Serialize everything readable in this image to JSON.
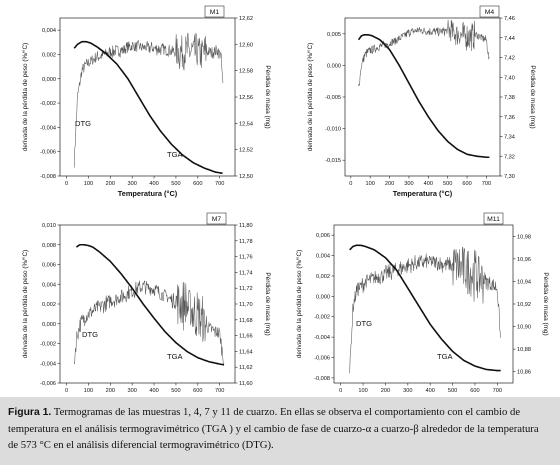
{
  "figure": {
    "caption_label": "Figura 1.",
    "caption_text": "Termogramas de las muestras 1, 4, 7 y 11 de cuarzo. En ellas se observa el comportamiento con el cambio de temperatura en el análisis termogravimétrico (TGA ) y el cambio de fase de cuarzo-α a cuarzo-β alrededor de la temperatura de 573 °C en el análisis diferencial termogravimétrico (DTG)."
  },
  "chart_data": [
    {
      "type": "line",
      "title": "M1",
      "xlabel": "Temperatura (°C)",
      "ylabel_left": "derivada de la pérdida de peso (%/°C)",
      "ylabel_right": "Pérdida de masa (mg)",
      "xlim": [
        -30,
        770
      ],
      "xticks": [
        0,
        100,
        200,
        300,
        400,
        500,
        600,
        700
      ],
      "ylim_left": [
        -0.008,
        0.005
      ],
      "yticks_left": [
        "-0,008",
        "-0,006",
        "-0,004",
        "-0,002",
        "0,000",
        "0,002",
        "0,004"
      ],
      "ylim_right": [
        12.5,
        12.62
      ],
      "yticks_right": [
        "12,50",
        "12,52",
        "12,54",
        "12,56",
        "12,58",
        "12,60",
        "12,62"
      ],
      "annotations": [
        "DTG",
        "TGA"
      ],
      "series": [
        {
          "name": "DTG",
          "axis": "left",
          "x": [
            35,
            50,
            70,
            90,
            110,
            130,
            160,
            200,
            260,
            300,
            350,
            400,
            450,
            500,
            550,
            600,
            650,
            690,
            705,
            715
          ],
          "y": [
            -0.0068,
            -0.0015,
            0.0007,
            0.0012,
            0.0014,
            0.0017,
            0.0019,
            0.0022,
            0.0024,
            0.0027,
            0.0026,
            0.0025,
            0.0024,
            0.0022,
            0.0023,
            0.0021,
            0.0022,
            0.0023,
            0.002,
            -0.0005
          ],
          "noise": 0.0006
        },
        {
          "name": "TGA",
          "axis": "right",
          "x": [
            35,
            50,
            70,
            90,
            110,
            140,
            180,
            230,
            280,
            330,
            380,
            430,
            480,
            530,
            580,
            630,
            680,
            715
          ],
          "y": [
            12.597,
            12.6,
            12.602,
            12.602,
            12.601,
            12.598,
            12.593,
            12.585,
            12.574,
            12.56,
            12.546,
            12.534,
            12.524,
            12.516,
            12.51,
            12.506,
            12.503,
            12.502
          ],
          "noise": 0
        }
      ]
    },
    {
      "type": "line",
      "title": "M4",
      "xlabel": "Temperatura (°C)",
      "ylabel_left": "derivada de la pérdida de peso (%/°C)",
      "ylabel_right": "Pérdida de masa (mg)",
      "xlim": [
        -30,
        770
      ],
      "xticks": [
        0,
        100,
        200,
        300,
        400,
        500,
        600,
        700
      ],
      "ylim_left": [
        -0.0175,
        0.0075
      ],
      "yticks_left": [
        "-0,015",
        "-0,010",
        "-0,005",
        "0,000",
        "0,005"
      ],
      "ylim_right": [
        7.3,
        7.46
      ],
      "yticks_right": [
        "7,30",
        "7,32",
        "7,34",
        "7,36",
        "7,38",
        "7,40",
        "7,42",
        "7,44",
        "7,46"
      ],
      "annotations": [],
      "series": [
        {
          "name": "DTG",
          "axis": "left",
          "x": [
            40,
            55,
            70,
            90,
            110,
            150,
            200,
            250,
            300,
            350,
            400,
            450,
            500,
            550,
            600,
            650,
            700,
            715
          ],
          "y": [
            -0.0035,
            0.0,
            0.0015,
            0.0022,
            0.0025,
            0.003,
            0.0035,
            0.0042,
            0.0052,
            0.0056,
            0.0054,
            0.0053,
            0.0055,
            0.005,
            0.0045,
            0.0048,
            0.004,
            0.0005
          ],
          "noise": 0.0008
        },
        {
          "name": "TGA",
          "axis": "right",
          "x": [
            40,
            55,
            70,
            90,
            110,
            150,
            200,
            250,
            300,
            350,
            400,
            450,
            500,
            550,
            600,
            650,
            700,
            715
          ],
          "y": [
            7.438,
            7.442,
            7.443,
            7.443,
            7.442,
            7.438,
            7.428,
            7.412,
            7.394,
            7.376,
            7.36,
            7.346,
            7.335,
            7.327,
            7.322,
            7.32,
            7.319,
            7.319
          ],
          "noise": 0
        }
      ]
    },
    {
      "type": "line",
      "title": "M7",
      "xlabel": "Temperatura (°C)",
      "ylabel_left": "derivada de la pérdida de peso (%/°C)",
      "ylabel_right": "Pérdida de masa (mg)",
      "xlim": [
        -30,
        770
      ],
      "xticks": [
        0,
        100,
        200,
        300,
        400,
        500,
        600,
        700
      ],
      "ylim_left": [
        -0.006,
        0.01
      ],
      "yticks_left": [
        "-0,006",
        "-0,004",
        "-0,002",
        "0,000",
        "0,002",
        "0,004",
        "0,006",
        "0,008",
        "0,010"
      ],
      "ylim_right": [
        11.6,
        11.8
      ],
      "yticks_right": [
        "11,60",
        "11,62",
        "11,64",
        "11,66",
        "11,68",
        "11,70",
        "11,72",
        "11,74",
        "11,76",
        "11,78",
        "11,80"
      ],
      "annotations": [
        "DTG",
        "TGA"
      ],
      "series": [
        {
          "name": "DTG",
          "axis": "left",
          "x": [
            35,
            45,
            60,
            80,
            100,
            150,
            200,
            250,
            300,
            350,
            400,
            450,
            500,
            550,
            600,
            650,
            700,
            720
          ],
          "y": [
            -0.004,
            -0.0015,
            -0.0002,
            0.0006,
            0.001,
            0.0017,
            0.0023,
            0.0027,
            0.0033,
            0.0038,
            0.0035,
            0.0028,
            0.0022,
            0.0018,
            0.0008,
            -0.0005,
            -0.001,
            -0.004
          ],
          "noise": 0.0009
        },
        {
          "name": "TGA",
          "axis": "right",
          "x": [
            45,
            60,
            80,
            100,
            120,
            150,
            200,
            250,
            300,
            350,
            400,
            450,
            500,
            550,
            600,
            650,
            700,
            720
          ],
          "y": [
            11.772,
            11.775,
            11.775,
            11.774,
            11.772,
            11.766,
            11.754,
            11.738,
            11.72,
            11.7,
            11.682,
            11.665,
            11.651,
            11.64,
            11.632,
            11.627,
            11.624,
            11.623
          ],
          "noise": 0
        }
      ]
    },
    {
      "type": "line",
      "title": "M11",
      "xlabel": "Temperatura (°C)",
      "ylabel_left": "derivada de la pérdida de peso (%/°C)",
      "ylabel_right": "Pérdida de masa (mg)",
      "xlim": [
        -30,
        770
      ],
      "xticks": [
        0,
        100,
        200,
        300,
        400,
        500,
        600,
        700
      ],
      "ylim_left": [
        -0.0085,
        0.007
      ],
      "yticks_left": [
        "-0,008",
        "-0,006",
        "-0,004",
        "-0,002",
        "0,000",
        "0,002",
        "0,004",
        "0,006"
      ],
      "ylim_right": [
        10.85,
        10.99
      ],
      "yticks_right": [
        "10,86",
        "10,88",
        "10,90",
        "10,92",
        "10,94",
        "10,96",
        "10,98"
      ],
      "annotations": [
        "DTG",
        "TGA"
      ],
      "series": [
        {
          "name": "DTG",
          "axis": "left",
          "x": [
            40,
            55,
            70,
            90,
            110,
            150,
            200,
            250,
            300,
            350,
            400,
            450,
            500,
            550,
            600,
            650,
            700,
            715
          ],
          "y": [
            -0.0075,
            -0.001,
            0.0005,
            0.001,
            0.0014,
            0.0018,
            0.0022,
            0.0026,
            0.003,
            0.0033,
            0.0034,
            0.0032,
            0.003,
            0.0028,
            0.0022,
            0.0015,
            0.0008,
            -0.0045
          ],
          "noise": 0.0009
        },
        {
          "name": "TGA",
          "axis": "right",
          "x": [
            40,
            55,
            70,
            90,
            110,
            150,
            200,
            250,
            300,
            350,
            400,
            450,
            500,
            550,
            600,
            650,
            700,
            715
          ],
          "y": [
            10.968,
            10.971,
            10.972,
            10.972,
            10.971,
            10.968,
            10.961,
            10.95,
            10.934,
            10.918,
            10.902,
            10.889,
            10.878,
            10.87,
            10.865,
            10.862,
            10.861,
            10.861
          ],
          "noise": 0
        }
      ]
    }
  ]
}
